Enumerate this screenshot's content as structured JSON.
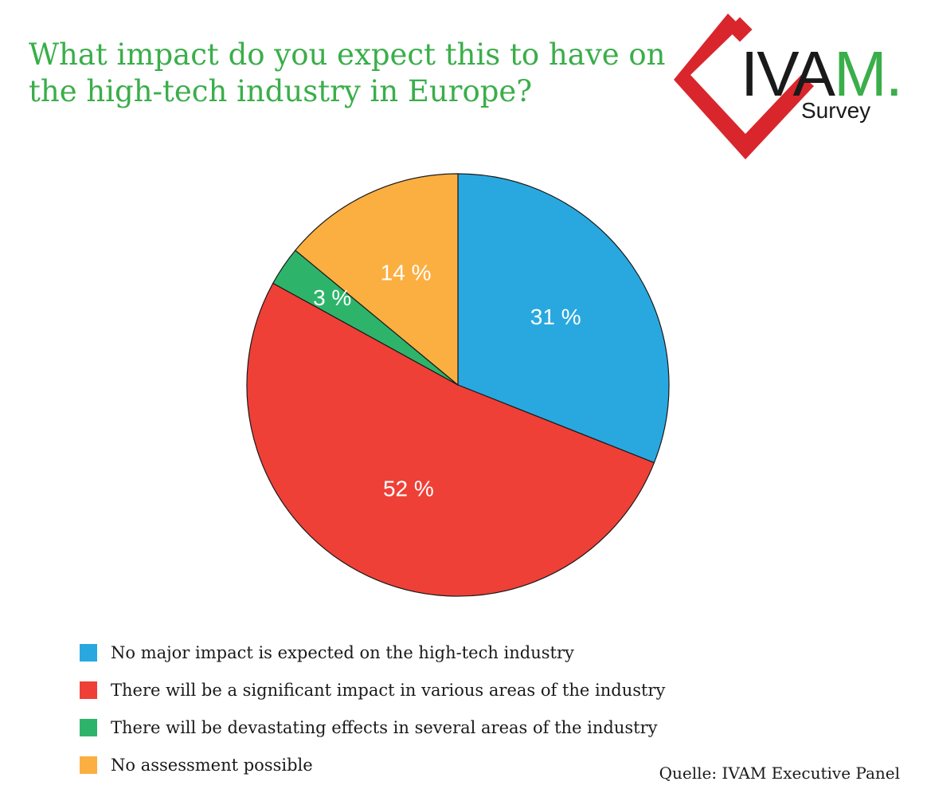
{
  "title": {
    "line1": "What impact do you expect this to have on",
    "line2": "the high-tech industry in Europe?"
  },
  "logo": {
    "brand": "IVAM.",
    "brand_main": "IVA",
    "brand_accent": "M.",
    "subtitle": "Survey",
    "colors": {
      "mark": "#d9262c",
      "text": "#1a1a1a",
      "accent": "#3aae4a"
    }
  },
  "chart_data": {
    "type": "pie",
    "start": "12 o'clock, clockwise",
    "slices": [
      {
        "label": "No major impact is expected on the high-tech industry",
        "value": 31,
        "value_label": "31 %",
        "color": "#29a8e0"
      },
      {
        "label": "There will be a significant impact in various areas of the industry",
        "value": 52,
        "value_label": "52 %",
        "color": "#ee4037"
      },
      {
        "label": "There will be devastating effects in several areas of the industry",
        "value": 3,
        "value_label": "3 %",
        "color": "#2eb46a"
      },
      {
        "label": "No assessment possible",
        "value": 14,
        "value_label": "14 %",
        "color": "#fbaf41"
      }
    ]
  },
  "source": "Quelle: IVAM Executive Panel"
}
